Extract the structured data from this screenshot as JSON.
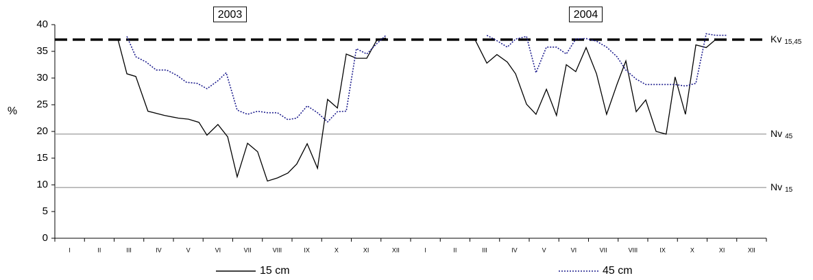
{
  "chart_data": {
    "type": "line",
    "y_label": "%",
    "ylim": [
      0,
      40
    ],
    "yticks": [
      0,
      5,
      10,
      15,
      20,
      25,
      30,
      35,
      40
    ],
    "xlim": [
      0,
      24
    ],
    "categories": [
      "I",
      "II",
      "III",
      "IV",
      "V",
      "VI",
      "VII",
      "VIII",
      "IX",
      "X",
      "XI",
      "XII",
      "I",
      "II",
      "III",
      "IV",
      "V",
      "VI",
      "VII",
      "VIII",
      "IX",
      "X",
      "XI",
      "XII"
    ],
    "annotations": [
      "2003",
      "2004"
    ],
    "reference_lines": [
      {
        "label": "Kv",
        "sub": "15,45",
        "value": 37.2,
        "color": "#000000",
        "style": "dashed"
      },
      {
        "label": "Nv",
        "sub": "45",
        "value": 19.5,
        "color": "#808080",
        "style": "solid"
      },
      {
        "label": "Nv",
        "sub": "15",
        "value": 9.5,
        "color": "#808080",
        "style": "solid"
      }
    ],
    "series": [
      {
        "name": "15 cm",
        "color": "#000000",
        "style": "solid",
        "x": [
          2.13,
          2.43,
          2.73,
          3.14,
          3.7,
          4.16,
          4.51,
          4.86,
          5.13,
          5.5,
          5.83,
          6.15,
          6.5,
          6.84,
          7.17,
          7.51,
          7.86,
          8.16,
          8.51,
          8.86,
          9.2,
          9.53,
          9.83,
          10.17,
          10.52,
          10.87,
          11.17,
          12.5,
          14.17,
          14.57,
          14.91,
          15.26,
          15.54,
          15.91,
          16.23,
          16.58,
          16.92,
          17.25,
          17.57,
          17.92,
          18.27,
          18.61,
          18.96,
          19.26,
          19.61,
          19.93,
          20.28,
          20.62,
          20.92,
          21.27,
          21.62,
          21.97,
          22.29
        ],
        "values": [
          37.2,
          30.8,
          30.3,
          23.8,
          23,
          22.5,
          22.3,
          21.7,
          19.3,
          21.3,
          19,
          11.5,
          17.8,
          16.2,
          10.7,
          11.3,
          12.2,
          13.9,
          17.7,
          13.1,
          26,
          24.4,
          34.5,
          33.7,
          33.7,
          37.2,
          37.5,
          null,
          37.2,
          32.8,
          34.4,
          33,
          30.8,
          25.1,
          23.2,
          27.9,
          23,
          32.5,
          31.2,
          35.7,
          30.8,
          23.2,
          28.8,
          33.2,
          23.7,
          25.9,
          20,
          19.5,
          30.2,
          23.2,
          36.2,
          35.7,
          37.2
        ]
      },
      {
        "name": "45 cm",
        "color": "#1a1a8c",
        "style": "dotted",
        "x": [
          2.43,
          2.73,
          3.08,
          3.42,
          3.77,
          4.12,
          4.44,
          4.81,
          5.13,
          5.5,
          5.78,
          6.15,
          6.5,
          6.84,
          7.17,
          7.51,
          7.86,
          8.16,
          8.51,
          8.86,
          9.2,
          9.53,
          9.83,
          10.17,
          10.52,
          10.87,
          11.17,
          12.5,
          14.57,
          14.91,
          15.26,
          15.54,
          15.91,
          16.23,
          16.58,
          16.92,
          17.25,
          17.57,
          17.92,
          18.27,
          18.61,
          18.96,
          19.26,
          19.61,
          19.93,
          20.28,
          20.62,
          20.92,
          21.27,
          21.62,
          21.97,
          22.29,
          22.66
        ],
        "values": [
          37.8,
          34,
          33,
          31.5,
          31.5,
          30.5,
          29.2,
          29,
          28,
          29.5,
          31,
          24,
          23.2,
          23.8,
          23.5,
          23.5,
          22.2,
          22.5,
          24.8,
          23.5,
          21.8,
          23.7,
          23.8,
          35.5,
          34.5,
          36.5,
          38,
          null,
          38,
          37,
          35.8,
          37.3,
          37.8,
          31,
          35.8,
          35.8,
          34.5,
          37.3,
          37.4,
          36.9,
          35.8,
          34,
          31.5,
          29.8,
          28.8,
          28.8,
          28.8,
          28.8,
          28.5,
          29,
          38.3,
          38,
          38
        ]
      }
    ]
  }
}
